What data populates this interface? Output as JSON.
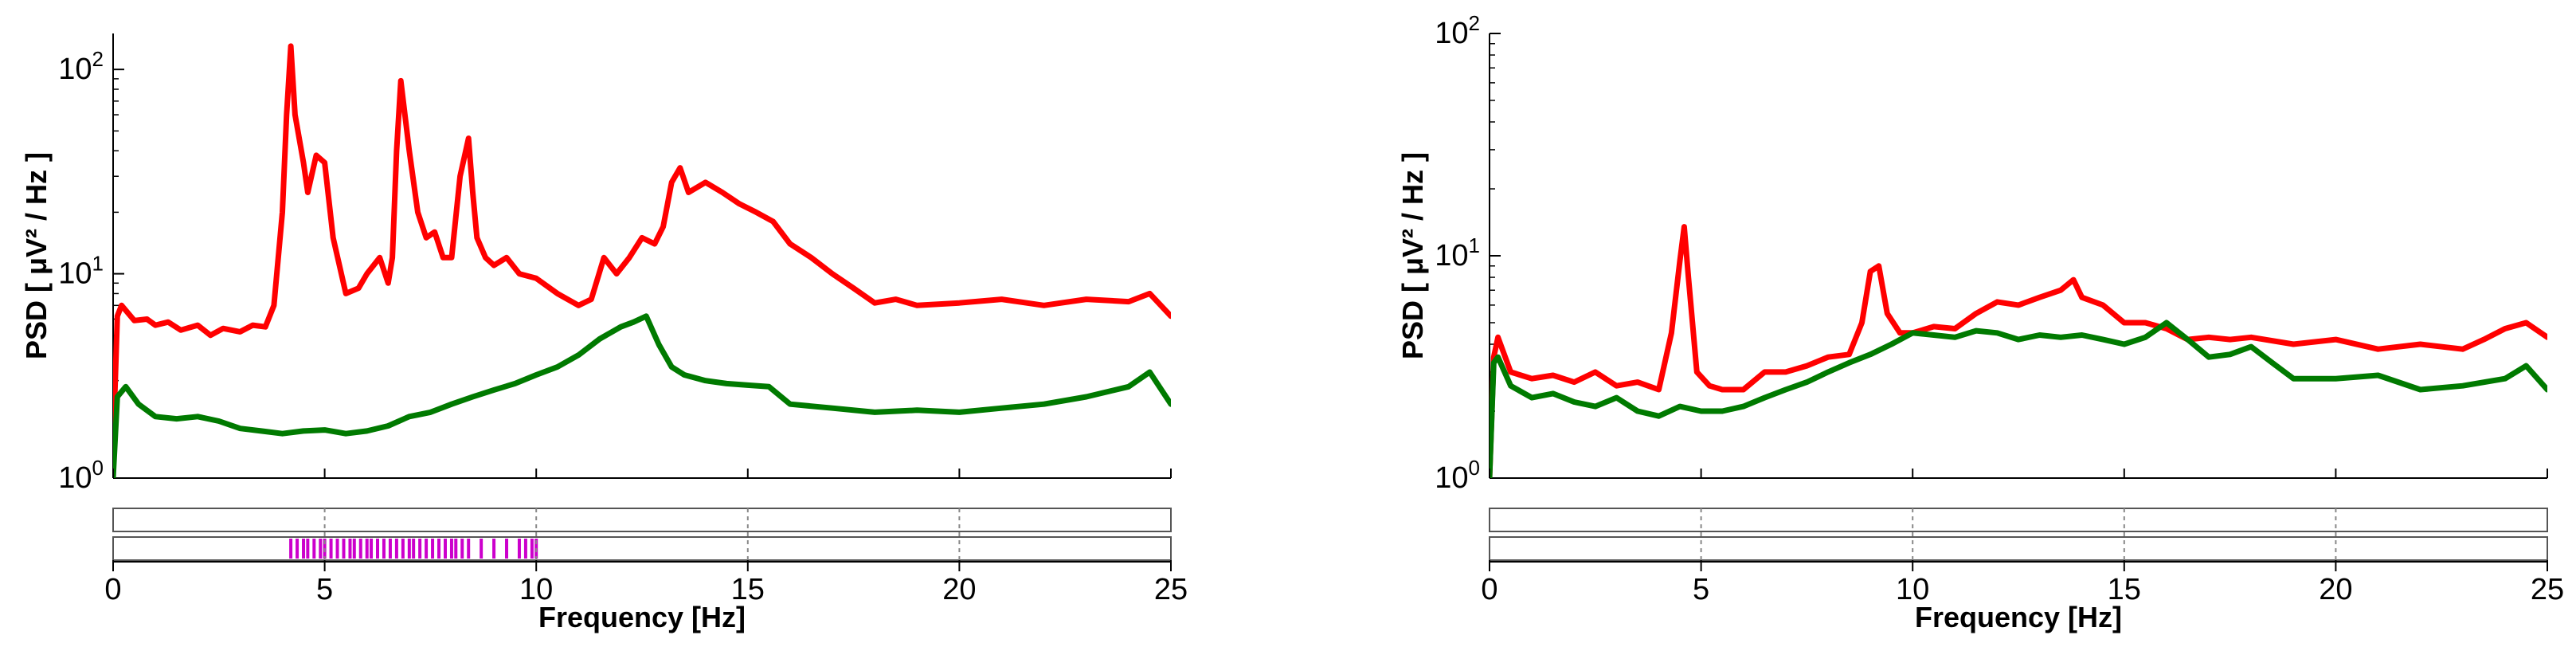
{
  "chart_data": [
    {
      "type": "line",
      "xlabel": "Frequency [Hz]",
      "ylabel": "PSD [ μV² / Hz ]",
      "xlim": [
        0,
        25
      ],
      "ylim": [
        1,
        150
      ],
      "yscale": "log",
      "xticks": [
        "0",
        "5",
        "10",
        "15",
        "20",
        "25"
      ],
      "yticks": [
        {
          "base": "10",
          "exp": "0"
        },
        {
          "base": "10",
          "exp": "1"
        },
        {
          "base": "10",
          "exp": "2"
        }
      ],
      "series": [
        {
          "color": "#ff0000",
          "x": [
            0,
            0.1,
            0.2,
            0.5,
            0.8,
            1.0,
            1.3,
            1.6,
            2.0,
            2.3,
            2.6,
            3.0,
            3.3,
            3.6,
            3.8,
            4.0,
            4.1,
            4.2,
            4.3,
            4.5,
            4.6,
            4.8,
            5.0,
            5.2,
            5.5,
            5.8,
            6.0,
            6.3,
            6.5,
            6.6,
            6.7,
            6.8,
            7.0,
            7.2,
            7.4,
            7.6,
            7.8,
            8.0,
            8.2,
            8.4,
            8.5,
            8.6,
            8.8,
            9.0,
            9.3,
            9.6,
            10.0,
            10.5,
            11.0,
            11.3,
            11.6,
            11.9,
            12.2,
            12.5,
            12.8,
            13.0,
            13.2,
            13.4,
            13.6,
            14.0,
            14.4,
            14.8,
            15.2,
            15.6,
            16.0,
            16.5,
            17.0,
            17.5,
            18.0,
            18.5,
            19.0,
            20.0,
            21.0,
            22.0,
            23.0,
            24.0,
            24.5,
            25.0
          ],
          "values": [
            1.4,
            6.2,
            7.0,
            5.9,
            6.0,
            5.6,
            5.8,
            5.3,
            5.6,
            5.0,
            5.4,
            5.2,
            5.6,
            5.5,
            7.0,
            20,
            60,
            130,
            60,
            35,
            25,
            38,
            35,
            15,
            8,
            8.5,
            10,
            12,
            9,
            12,
            40,
            88,
            40,
            20,
            15,
            16,
            12,
            12,
            30,
            46,
            25,
            15,
            12,
            11,
            12,
            10,
            9.5,
            8,
            7,
            7.5,
            12,
            10,
            12,
            15,
            14,
            17,
            28,
            33,
            25,
            28,
            25,
            22,
            20,
            18,
            14,
            12,
            10,
            8.5,
            7.2,
            7.5,
            7.0,
            7.2,
            7.5,
            7.0,
            7.5,
            7.3,
            8.0,
            6.2
          ]
        },
        {
          "color": "#007a00",
          "x": [
            0,
            0.1,
            0.3,
            0.6,
            1.0,
            1.5,
            2.0,
            2.5,
            3.0,
            3.5,
            4.0,
            4.5,
            5.0,
            5.5,
            6.0,
            6.5,
            7.0,
            7.5,
            8.0,
            8.5,
            9.0,
            9.5,
            10.0,
            10.5,
            11.0,
            11.5,
            12.0,
            12.3,
            12.6,
            12.9,
            13.2,
            13.5,
            14.0,
            14.5,
            15.0,
            15.5,
            16.0,
            17.0,
            18.0,
            19.0,
            20.0,
            21.0,
            22.0,
            23.0,
            24.0,
            24.5,
            25.0
          ],
          "values": [
            1.0,
            2.5,
            2.8,
            2.3,
            2.0,
            1.95,
            2.0,
            1.9,
            1.75,
            1.7,
            1.65,
            1.7,
            1.72,
            1.65,
            1.7,
            1.8,
            2.0,
            2.1,
            2.3,
            2.5,
            2.7,
            2.9,
            3.2,
            3.5,
            4.0,
            4.8,
            5.5,
            5.8,
            6.2,
            4.5,
            3.5,
            3.2,
            3.0,
            2.9,
            2.85,
            2.8,
            2.3,
            2.2,
            2.1,
            2.15,
            2.1,
            2.2,
            2.3,
            2.5,
            2.8,
            3.3,
            2.3
          ]
        }
      ],
      "ticks_band": {
        "color": "#cc00cc",
        "x": [
          4.2,
          4.35,
          4.5,
          4.6,
          4.75,
          4.9,
          5.0,
          5.15,
          5.3,
          5.45,
          5.6,
          5.7,
          5.85,
          6.0,
          6.1,
          6.25,
          6.4,
          6.55,
          6.7,
          6.85,
          7.0,
          7.1,
          7.25,
          7.4,
          7.55,
          7.7,
          7.85,
          8.0,
          8.1,
          8.25,
          8.4,
          8.7,
          9.0,
          9.3,
          9.6,
          9.75,
          9.9,
          10.0
        ]
      }
    },
    {
      "type": "line",
      "xlabel": "Frequency [Hz]",
      "ylabel": "PSD [ μV² / Hz ]",
      "xlim": [
        0,
        25
      ],
      "ylim": [
        1,
        100
      ],
      "yscale": "log",
      "xticks": [
        "0",
        "5",
        "10",
        "15",
        "20",
        "25"
      ],
      "yticks": [
        {
          "base": "10",
          "exp": "0"
        },
        {
          "base": "10",
          "exp": "1"
        },
        {
          "base": "10",
          "exp": "2"
        }
      ],
      "series": [
        {
          "color": "#ff0000",
          "x": [
            0,
            0.1,
            0.2,
            0.5,
            1.0,
            1.5,
            2.0,
            2.5,
            3.0,
            3.5,
            4.0,
            4.3,
            4.5,
            4.6,
            4.7,
            4.9,
            5.2,
            5.5,
            6.0,
            6.5,
            7.0,
            7.5,
            8.0,
            8.5,
            8.8,
            9.0,
            9.2,
            9.4,
            9.7,
            10.0,
            10.5,
            11.0,
            11.5,
            12.0,
            12.5,
            13.0,
            13.5,
            13.8,
            14.0,
            14.5,
            15.0,
            15.5,
            16.0,
            16.5,
            17.0,
            17.5,
            18.0,
            19.0,
            20.0,
            21.0,
            22.0,
            23.0,
            23.5,
            24.0,
            24.5,
            25.0
          ],
          "values": [
            1.0,
            3.5,
            4.3,
            3.0,
            2.8,
            2.9,
            2.7,
            3.0,
            2.6,
            2.7,
            2.5,
            4.5,
            9.5,
            13.5,
            8.0,
            3.0,
            2.6,
            2.5,
            2.5,
            3.0,
            3.0,
            3.2,
            3.5,
            3.6,
            5.0,
            8.5,
            9.0,
            5.5,
            4.5,
            4.5,
            4.8,
            4.7,
            5.5,
            6.2,
            6.0,
            6.5,
            7.0,
            7.8,
            6.5,
            6.0,
            5.0,
            5.0,
            4.7,
            4.2,
            4.3,
            4.2,
            4.3,
            4.0,
            4.2,
            3.8,
            4.0,
            3.8,
            4.2,
            4.7,
            5.0,
            4.3
          ]
        },
        {
          "color": "#007a00",
          "x": [
            0,
            0.1,
            0.2,
            0.5,
            1.0,
            1.5,
            2.0,
            2.5,
            3.0,
            3.5,
            4.0,
            4.5,
            5.0,
            5.5,
            6.0,
            6.5,
            7.0,
            7.5,
            8.0,
            8.5,
            9.0,
            9.5,
            10.0,
            10.5,
            11.0,
            11.5,
            12.0,
            12.5,
            13.0,
            13.5,
            14.0,
            14.5,
            15.0,
            15.5,
            16.0,
            16.5,
            17.0,
            17.5,
            18.0,
            18.5,
            19.0,
            20.0,
            21.0,
            22.0,
            23.0,
            24.0,
            24.5,
            25.0
          ],
          "values": [
            1.0,
            3.3,
            3.5,
            2.6,
            2.3,
            2.4,
            2.2,
            2.1,
            2.3,
            2.0,
            1.9,
            2.1,
            2.0,
            2.0,
            2.1,
            2.3,
            2.5,
            2.7,
            3.0,
            3.3,
            3.6,
            4.0,
            4.5,
            4.4,
            4.3,
            4.6,
            4.5,
            4.2,
            4.4,
            4.3,
            4.4,
            4.2,
            4.0,
            4.3,
            5.0,
            4.2,
            3.5,
            3.6,
            3.9,
            3.3,
            2.8,
            2.8,
            2.9,
            2.5,
            2.6,
            2.8,
            3.2,
            2.5
          ]
        }
      ],
      "ticks_band": {
        "color": "#cc00cc",
        "x": []
      }
    }
  ]
}
